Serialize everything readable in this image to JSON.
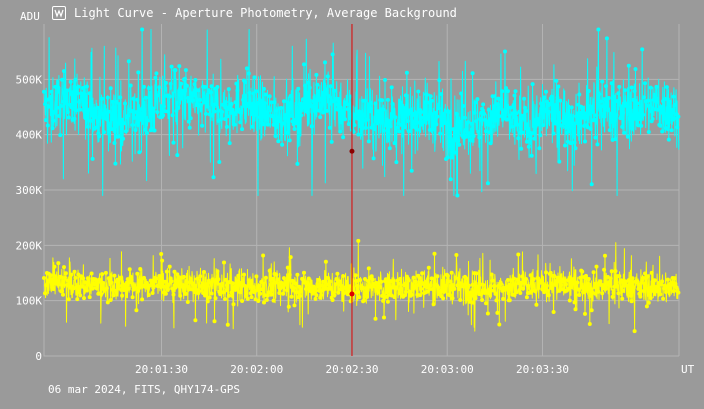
{
  "window": {
    "title": "Light Curve - Aperture Photometry, Average Background",
    "icon": "light-curve-icon"
  },
  "footer": {
    "text": "06 mar 2024, FITS, QHY174-GPS"
  },
  "colors": {
    "background": "#9a9a9a",
    "grid": "#b4b4b4",
    "target_series": "#00ffff",
    "comparison_series": "#ffff00",
    "cursor": "#dd0000",
    "axis_text": "#ffffff"
  },
  "chart_data": {
    "type": "line",
    "title": "Light Curve - Aperture Photometry, Average Background",
    "ylabel": "ADU",
    "xlabel": "UT",
    "ylim": [
      0,
      600000
    ],
    "xlim": [
      "20:00:53",
      "20:04:13"
    ],
    "y_ticks": [
      {
        "value": 0,
        "label": "0"
      },
      {
        "value": 100000,
        "label": "100K"
      },
      {
        "value": 200000,
        "label": "200K"
      },
      {
        "value": 300000,
        "label": "300K"
      },
      {
        "value": 400000,
        "label": "400K"
      },
      {
        "value": 500000,
        "label": "500K"
      }
    ],
    "x_ticks": [
      {
        "value": "20:01:30",
        "label": "20:01:30"
      },
      {
        "value": "20:02:00",
        "label": "20:02:00"
      },
      {
        "value": "20:02:30",
        "label": "20:02:30"
      },
      {
        "value": "20:03:00",
        "label": "20:03:00"
      },
      {
        "value": "20:03:30",
        "label": "20:03:30"
      }
    ],
    "grid": true,
    "cursor": {
      "time": "20:02:30",
      "values": [
        370000,
        112000
      ]
    },
    "series": [
      {
        "color": "#00ffff",
        "points_per_second": 10,
        "mean": 440000,
        "approx_range": [
          290000,
          590000
        ],
        "envelope": [
          [
            0,
            450000
          ],
          [
            8,
            465000
          ],
          [
            16,
            440000
          ],
          [
            24,
            425000
          ],
          [
            32,
            440000
          ],
          [
            40,
            470000
          ],
          [
            48,
            455000
          ],
          [
            56,
            445000
          ],
          [
            64,
            460000
          ],
          [
            72,
            430000
          ],
          [
            80,
            445000
          ],
          [
            88,
            470000
          ],
          [
            96,
            445000
          ],
          [
            104,
            425000
          ],
          [
            112,
            430000
          ],
          [
            120,
            440000
          ],
          [
            128,
            415000
          ],
          [
            136,
            420000
          ],
          [
            144,
            440000
          ],
          [
            152,
            415000
          ],
          [
            160,
            440000
          ],
          [
            168,
            430000
          ],
          [
            176,
            450000
          ],
          [
            184,
            440000
          ],
          [
            192,
            455000
          ],
          [
            200,
            440000
          ]
        ],
        "spread": 45000
      },
      {
        "color": "#ffff00",
        "points_per_second": 10,
        "mean": 128000,
        "approx_range": [
          45000,
          255000
        ],
        "envelope": [
          [
            0,
            130000
          ],
          [
            20,
            128000
          ],
          [
            40,
            130000
          ],
          [
            60,
            125000
          ],
          [
            80,
            128000
          ],
          [
            100,
            122000
          ],
          [
            120,
            128000
          ],
          [
            140,
            124000
          ],
          [
            160,
            130000
          ],
          [
            180,
            128000
          ],
          [
            200,
            122000
          ]
        ],
        "spread": 24000
      }
    ]
  }
}
